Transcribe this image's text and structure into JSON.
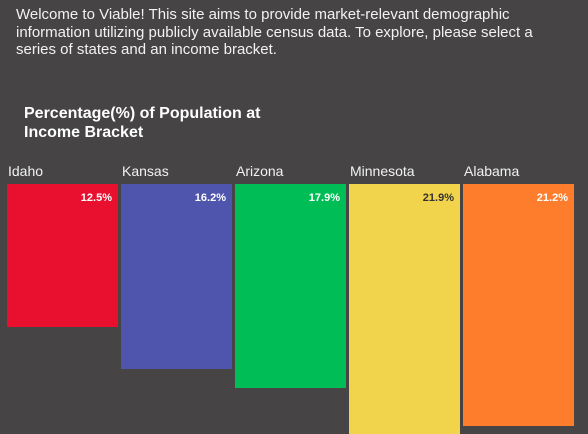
{
  "intro_text": "Welcome to Viable! This site aims to provide market-relevant demographic information utilizing publicly available census data. To explore, please select a series of states and an income bracket.",
  "chart_data": {
    "type": "bar",
    "title": "Percentage(%) of Population at Income Bracket",
    "categories": [
      "Idaho",
      "Kansas",
      "Arizona",
      "Minnesota",
      "Alabama"
    ],
    "values": [
      12.5,
      16.2,
      17.9,
      21.9,
      21.2
    ],
    "value_labels": [
      "12.5%",
      "16.2%",
      "17.9%",
      "21.9%",
      "21.2%"
    ],
    "unit": "%",
    "colors": [
      "#e8102e",
      "#4f55ad",
      "#00bd56",
      "#f2d44c",
      "#fd7d2d"
    ],
    "value_label_colors": [
      "#ffffff",
      "#ffffff",
      "#ffffff",
      "#333333",
      "#ffffff"
    ],
    "xlabel": "",
    "ylabel": "",
    "grid": false,
    "legend": "none"
  }
}
